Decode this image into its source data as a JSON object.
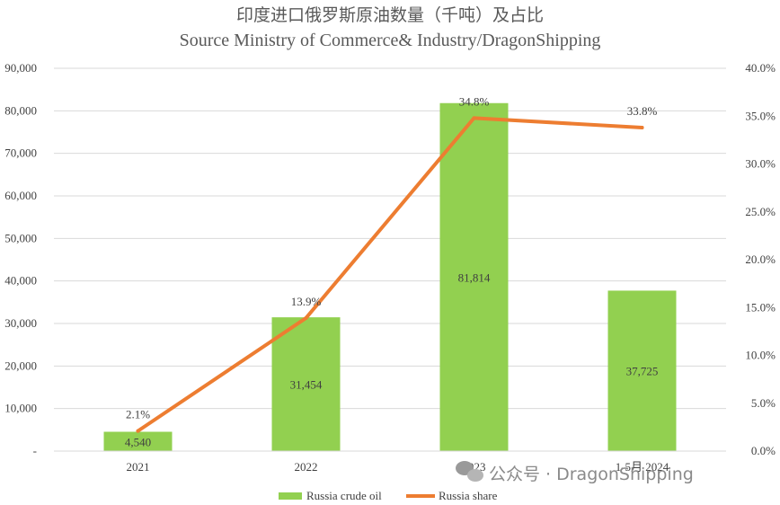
{
  "chart_data": {
    "type": "bar",
    "title": "印度进口俄罗斯原油数量（千吨）及占比",
    "subtitle": "Source Ministry of Commerce& Industry/DragonShipping",
    "categories": [
      "2021",
      "2022",
      "2023",
      "1-5月 2024"
    ],
    "series": [
      {
        "name": "Russia crude oil",
        "type": "bar",
        "axis": "left",
        "color": "#92d050",
        "values": [
          4540,
          31454,
          81814,
          37725
        ],
        "labels": [
          "4,540",
          "31,454",
          "81,814",
          "37,725"
        ]
      },
      {
        "name": "Russia share",
        "type": "line",
        "axis": "right",
        "color": "#ed7d31",
        "values": [
          2.1,
          13.9,
          34.8,
          33.8
        ],
        "labels": [
          "2.1%",
          "13.9%",
          "34.8%",
          "33.8%"
        ]
      }
    ],
    "ylim": [
      0,
      90000
    ],
    "y_ticks": [
      "-",
      "10,000",
      "20,000",
      "30,000",
      "40,000",
      "50,000",
      "60,000",
      "70,000",
      "80,000",
      "90,000"
    ],
    "y2lim": [
      0,
      40
    ],
    "y2_ticks": [
      "0.0%",
      "5.0%",
      "10.0%",
      "15.0%",
      "20.0%",
      "25.0%",
      "30.0%",
      "35.0%",
      "40.0%"
    ],
    "grid": true,
    "legend_position": "bottom"
  },
  "watermark": {
    "text": "公众号 · DragonShipping"
  }
}
